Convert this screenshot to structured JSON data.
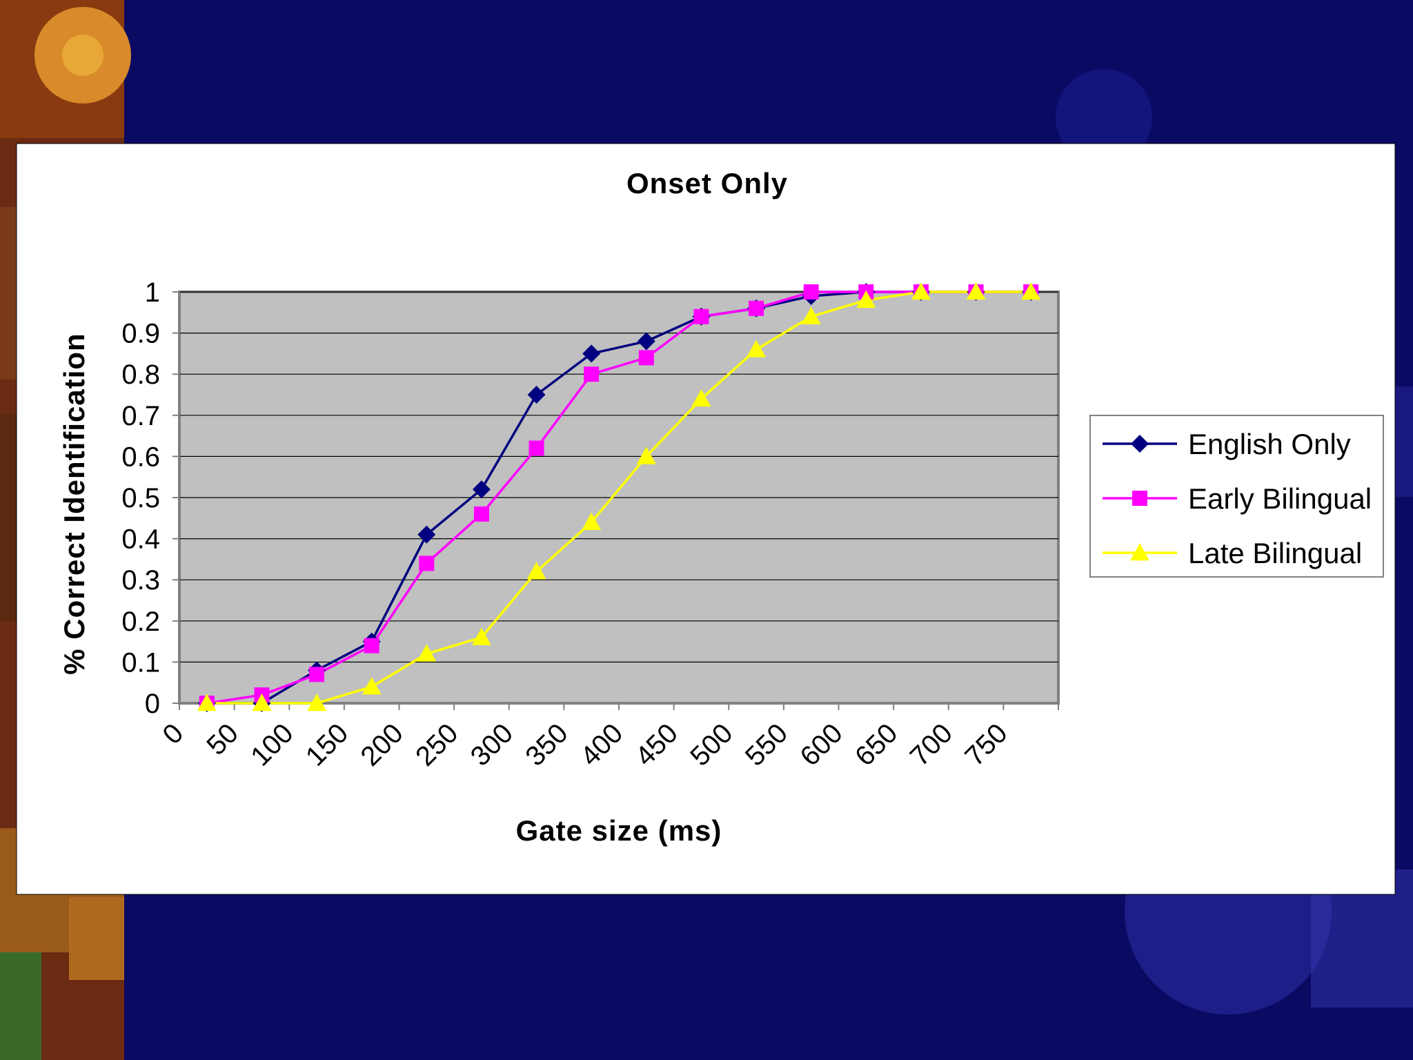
{
  "colors": {
    "slide_background": "#0b0a63",
    "chart_background": "#ffffff",
    "plot_area": "#c0c0c0",
    "english_only": "#000080",
    "early_bilingual": "#ff00ff",
    "late_bilingual": "#ffff00"
  },
  "chart_data": {
    "type": "line",
    "title": "Onset Only",
    "xlabel": "Gate size (ms)",
    "ylabel": "% Correct Identification",
    "categories": [
      "0",
      "50",
      "100",
      "150",
      "200",
      "250",
      "300",
      "350",
      "400",
      "450",
      "500",
      "550",
      "600",
      "650",
      "700",
      "750"
    ],
    "y_ticks": [
      "0",
      "0.1",
      "0.2",
      "0.3",
      "0.4",
      "0.5",
      "0.6",
      "0.7",
      "0.8",
      "0.9",
      "1"
    ],
    "ylim": [
      0,
      1
    ],
    "grid": true,
    "legend_position": "right",
    "series": [
      {
        "name": "English Only",
        "marker": "diamond",
        "color": "#000080",
        "values": [
          0,
          0,
          0.08,
          0.15,
          0.41,
          0.52,
          0.75,
          0.85,
          0.88,
          0.94,
          0.96,
          0.99,
          1.0,
          1.0,
          1.0,
          1.0
        ]
      },
      {
        "name": "Early Bilingual",
        "marker": "square",
        "color": "#ff00ff",
        "values": [
          0,
          0.02,
          0.07,
          0.14,
          0.34,
          0.46,
          0.62,
          0.8,
          0.84,
          0.94,
          0.96,
          1.0,
          1.0,
          1.0,
          1.0,
          1.0
        ]
      },
      {
        "name": "Late Bilingual",
        "marker": "triangle",
        "color": "#ffff00",
        "values": [
          0,
          0,
          0,
          0.04,
          0.12,
          0.16,
          0.32,
          0.44,
          0.6,
          0.74,
          0.86,
          0.94,
          0.98,
          1.0,
          1.0,
          1.0
        ]
      }
    ]
  }
}
